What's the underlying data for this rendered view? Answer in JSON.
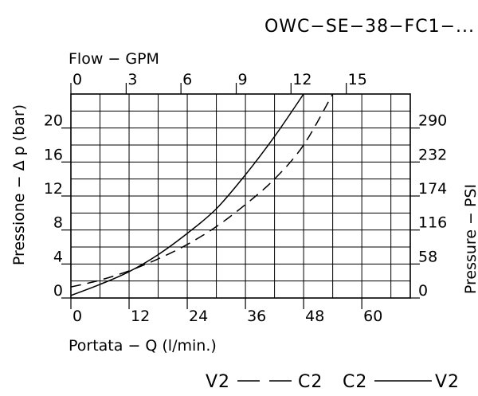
{
  "title": "OWC−SE−38−FC1−...",
  "chart_data": {
    "type": "line",
    "title": "OWC−SE−38−FC1−...",
    "xlabel": "Portata − Q (l/min.)",
    "ylabel": "Pressione − Δ p (bar)",
    "x2label": "Flow − GPM",
    "y2label": "Pressure − PSI",
    "xlim": [
      0,
      70
    ],
    "ylim": [
      0,
      24
    ],
    "grid": true,
    "x_ticks": [
      0,
      12,
      24,
      36,
      48,
      60
    ],
    "x_tick_labels": [
      "0",
      "12",
      "24",
      "36",
      "48",
      "60"
    ],
    "y_ticks": [
      0,
      4,
      8,
      12,
      16,
      20
    ],
    "y_tick_labels": [
      "0",
      "4",
      "8",
      "12",
      "16",
      "20"
    ],
    "x2_tick_labels": [
      "0",
      "3",
      "6",
      "9",
      "12",
      "15"
    ],
    "x2_tick_values_lpm": [
      0,
      11.4,
      22.7,
      34.1,
      45.4,
      56.8
    ],
    "y2_tick_labels": [
      "0",
      "58",
      "116",
      "174",
      "232",
      "290"
    ],
    "y2_tick_values_bar": [
      0,
      4,
      8,
      12,
      16,
      20
    ],
    "series": [
      {
        "name": "V2 — C2",
        "style": "dashed",
        "x": [
          0,
          6,
          12,
          18,
          24,
          30,
          36,
          42,
          48,
          54
        ],
        "y": [
          1.3,
          2.1,
          3.2,
          4.6,
          6.3,
          8.4,
          11.0,
          14.0,
          18.0,
          24.0
        ]
      },
      {
        "name": "C2 — V2",
        "style": "solid",
        "x": [
          0,
          6,
          12,
          18,
          24,
          30,
          36,
          42,
          48
        ],
        "y": [
          0.3,
          1.6,
          3.1,
          5.1,
          7.6,
          10.5,
          14.5,
          19.0,
          24.0
        ]
      }
    ],
    "legend": [
      {
        "label_left": "V2",
        "label_right": "C2",
        "style": "dashed"
      },
      {
        "label_left": "C2",
        "label_right": "V2",
        "style": "solid"
      }
    ],
    "legend_position": "bottom-right"
  }
}
